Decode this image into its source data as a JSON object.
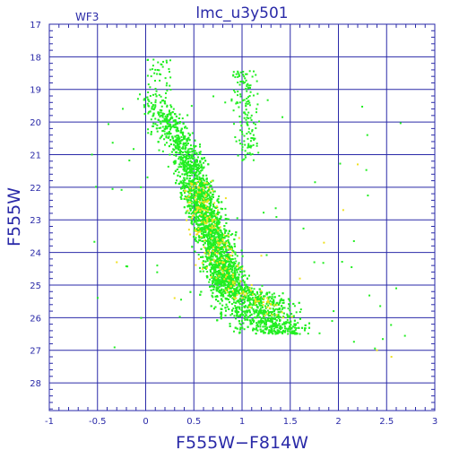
{
  "chart_data": {
    "type": "scatter",
    "title": "lmc_u3y501",
    "annotation": "WF3",
    "xlabel": "F555W−F814W",
    "ylabel": "F555W",
    "xlim": [
      -1,
      3
    ],
    "ylim": [
      28.85,
      17
    ],
    "y_inverted": true,
    "grid": true,
    "xticks": [
      "-1",
      "-0.5",
      "0",
      "0.5",
      "1",
      "1.5",
      "2",
      "2.5",
      "3"
    ],
    "yticks": [
      "17",
      "18",
      "19",
      "20",
      "21",
      "22",
      "23",
      "24",
      "25",
      "26",
      "27",
      "28"
    ],
    "series": [
      {
        "color": "#22ee22",
        "description_of_distribution": "main sequence: dense band from (0.1,19.5) curving to (1.5,26.5); sparse red clump column near x=1.05, y=18.5-21",
        "points": [
          [
            0.05,
            19.2
          ],
          [
            0.08,
            19.6
          ],
          [
            0.1,
            19.9
          ],
          [
            0.12,
            20.1
          ],
          [
            0.06,
            20.3
          ],
          [
            0.15,
            20.5
          ],
          [
            0.2,
            20.7
          ],
          [
            0.18,
            20.9
          ],
          [
            0.25,
            21.0
          ],
          [
            0.3,
            21.2
          ],
          [
            0.35,
            21.3
          ],
          [
            0.4,
            21.5
          ],
          [
            0.38,
            21.6
          ],
          [
            0.45,
            21.8
          ],
          [
            0.5,
            22.0
          ],
          [
            0.48,
            22.1
          ],
          [
            0.55,
            22.3
          ],
          [
            0.52,
            22.5
          ],
          [
            0.6,
            22.6
          ],
          [
            0.58,
            22.8
          ],
          [
            0.62,
            23.0
          ],
          [
            0.65,
            23.2
          ],
          [
            0.6,
            23.4
          ],
          [
            0.68,
            23.5
          ],
          [
            0.7,
            23.7
          ],
          [
            0.66,
            23.9
          ],
          [
            0.72,
            24.0
          ],
          [
            0.75,
            24.2
          ],
          [
            0.7,
            24.4
          ],
          [
            0.78,
            24.5
          ],
          [
            0.8,
            24.7
          ],
          [
            0.76,
            24.9
          ],
          [
            0.85,
            25.0
          ],
          [
            0.88,
            25.2
          ],
          [
            0.9,
            25.4
          ],
          [
            0.95,
            25.5
          ],
          [
            1.0,
            25.7
          ],
          [
            1.05,
            25.8
          ],
          [
            1.1,
            25.9
          ],
          [
            1.15,
            26.0
          ],
          [
            1.2,
            26.1
          ],
          [
            1.25,
            26.2
          ],
          [
            1.3,
            26.25
          ],
          [
            1.35,
            26.3
          ],
          [
            1.4,
            26.35
          ],
          [
            1.45,
            26.4
          ],
          [
            1.5,
            26.45
          ],
          [
            1.55,
            26.5
          ],
          [
            1.6,
            26.5
          ],
          [
            1.0,
            24.6
          ],
          [
            1.1,
            25.1
          ],
          [
            1.2,
            25.4
          ],
          [
            0.9,
            24.1
          ],
          [
            0.82,
            23.8
          ],
          [
            0.74,
            23.1
          ],
          [
            0.55,
            21.6
          ],
          [
            0.42,
            21.1
          ],
          [
            0.3,
            20.6
          ],
          [
            0.22,
            20.2
          ],
          [
            0.16,
            19.8
          ],
          [
            1.02,
            18.6
          ],
          [
            1.05,
            18.9
          ],
          [
            1.08,
            19.2
          ],
          [
            1.04,
            19.5
          ],
          [
            1.1,
            19.8
          ],
          [
            1.06,
            20.1
          ],
          [
            1.12,
            20.4
          ],
          [
            1.03,
            20.7
          ],
          [
            1.09,
            21.0
          ],
          [
            0.98,
            19.4
          ],
          [
            1.15,
            19.6
          ],
          [
            1.0,
            20.3
          ],
          [
            0.02,
            18.1
          ],
          [
            0.1,
            18.4
          ],
          [
            -0.05,
            22.0
          ],
          [
            2.3,
            20.4
          ],
          [
            1.75,
            24.3
          ],
          [
            0.12,
            24.4
          ],
          [
            2.6,
            25.1
          ],
          [
            1.95,
            25.8
          ]
        ]
      },
      {
        "color": "#f0e020",
        "description_of_distribution": "sparse yellow points scattered within and around the main sequence",
        "points": [
          [
            0.6,
            22.1
          ],
          [
            0.65,
            22.4
          ],
          [
            0.7,
            23.0
          ],
          [
            0.8,
            23.6
          ],
          [
            0.9,
            24.0
          ],
          [
            1.0,
            24.5
          ],
          [
            1.1,
            25.0
          ],
          [
            0.75,
            22.7
          ],
          [
            1.3,
            25.6
          ],
          [
            2.05,
            22.7
          ],
          [
            1.85,
            23.7
          ],
          [
            2.2,
            21.3
          ],
          [
            0.3,
            25.4
          ],
          [
            -0.3,
            24.3
          ],
          [
            2.4,
            27.0
          ],
          [
            2.55,
            27.2
          ],
          [
            1.6,
            24.8
          ],
          [
            0.45,
            23.3
          ],
          [
            1.2,
            24.1
          ],
          [
            0.95,
            25.3
          ]
        ]
      }
    ]
  }
}
